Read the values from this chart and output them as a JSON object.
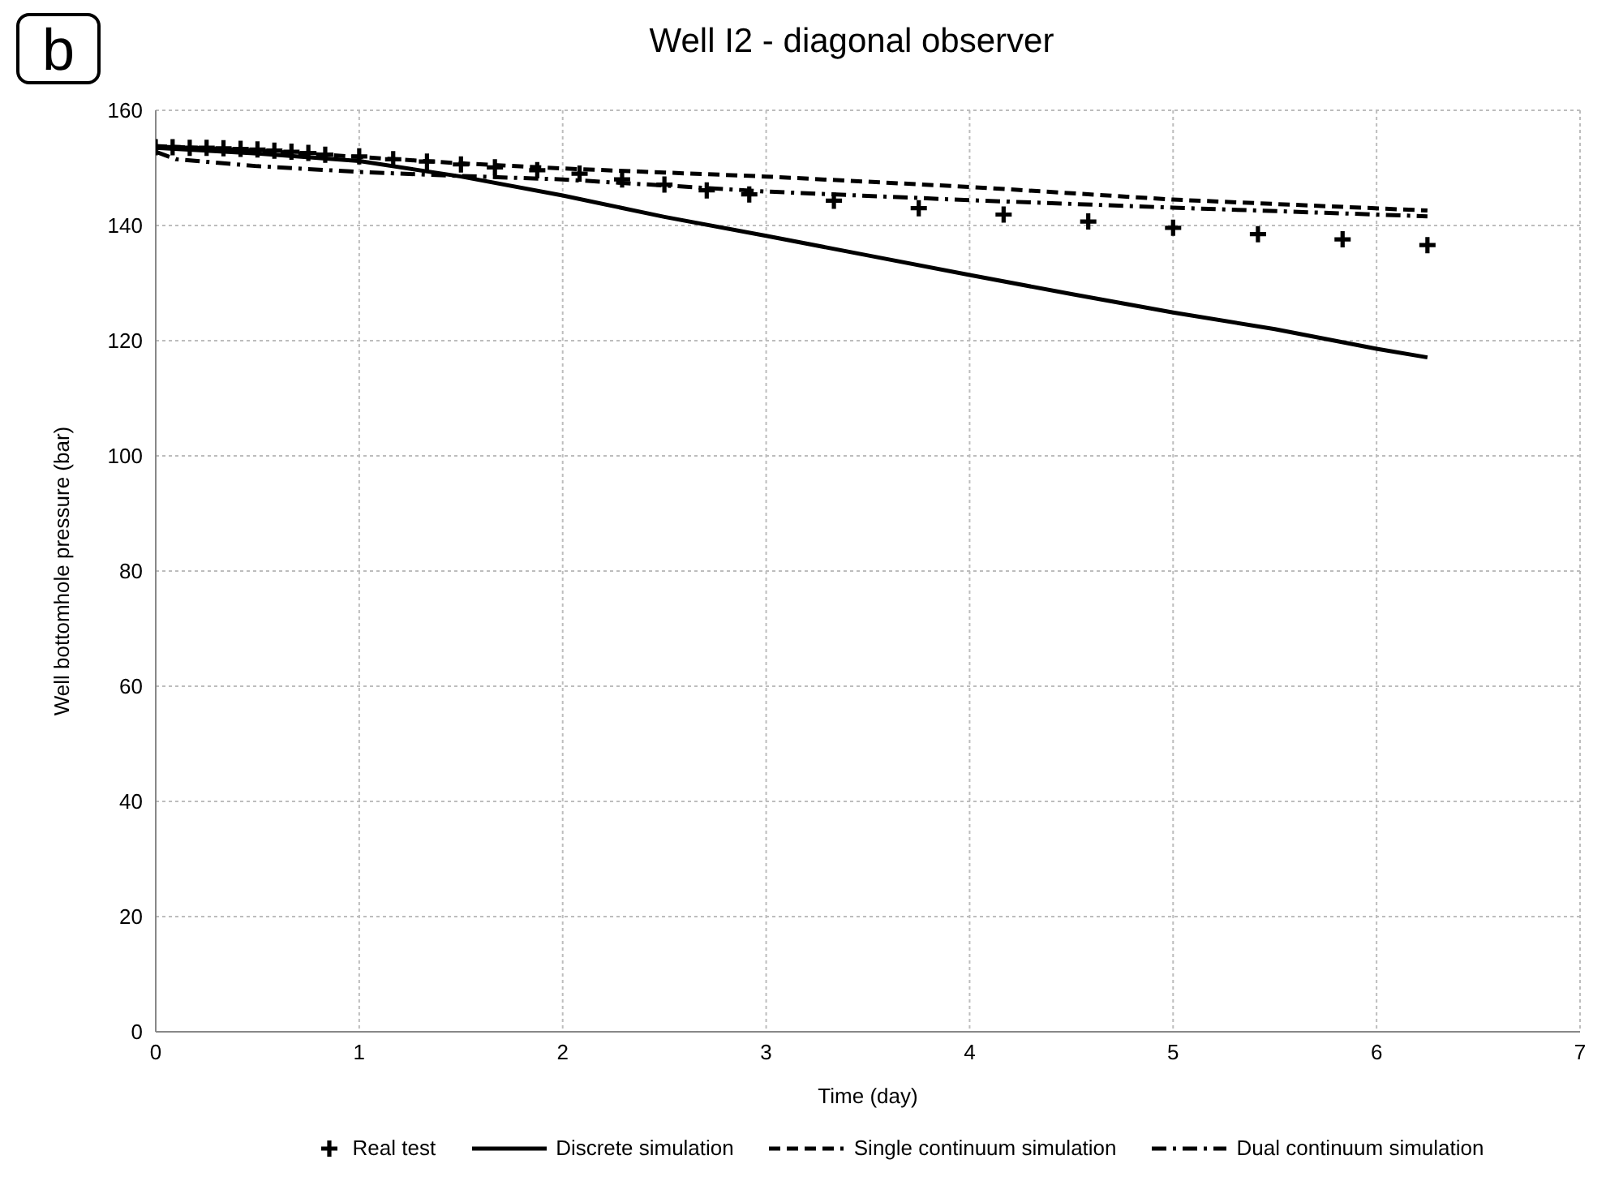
{
  "chart_data": {
    "type": "line",
    "title": "Well I2 - diagonal observer",
    "annotations": [
      "b"
    ],
    "xlabel": "Time (day)",
    "ylabel": "Well bottomhole pressure (bar)",
    "xlim": [
      0,
      7
    ],
    "xticks": [
      0,
      1,
      2,
      3,
      4,
      5,
      6,
      7
    ],
    "ylim": [
      0,
      160
    ],
    "yticks": [
      0,
      20,
      40,
      60,
      80,
      100,
      120,
      140,
      160
    ],
    "grid": true,
    "legend": "bottom",
    "series": [
      {
        "name": "Real test",
        "type": "scatter",
        "marker": "cross",
        "color": "#000000",
        "x": [
          0,
          0.083,
          0.167,
          0.25,
          0.333,
          0.417,
          0.5,
          0.583,
          0.667,
          0.75,
          0.833,
          1,
          1.167,
          1.333,
          1.5,
          1.667,
          1.875,
          2.083,
          2.292,
          2.5,
          2.708,
          2.917,
          3.333,
          3.75,
          4.167,
          4.583,
          5,
          5.417,
          5.833,
          6.25
        ],
        "values": [
          153.6,
          153.6,
          153.5,
          153.5,
          153.4,
          153.3,
          153.2,
          153,
          152.8,
          152.6,
          152.3,
          152,
          151.5,
          151.1,
          150.6,
          150.1,
          149.6,
          149,
          148,
          147.1,
          146.1,
          145.4,
          144.3,
          143,
          141.9,
          140.7,
          139.6,
          138.5,
          137.6,
          136.6
        ]
      },
      {
        "name": "Discrete simulation",
        "line_style": "solid",
        "color": "#000000",
        "x": [
          0,
          0.5,
          1,
          1.5,
          2,
          2.5,
          3,
          3.5,
          4,
          4.5,
          5,
          5.5,
          6,
          6.25
        ],
        "values": [
          153.5,
          152.5,
          151.2,
          148.5,
          145.2,
          141.5,
          138.2,
          134.8,
          131.4,
          128.1,
          124.9,
          122,
          118.6,
          117.1
        ]
      },
      {
        "name": "Single continuum simulation",
        "line_style": "dashed",
        "color": "#000000",
        "x": [
          0,
          0.5,
          1,
          1.5,
          2,
          2.5,
          3,
          4,
          5,
          6.25
        ],
        "values": [
          153.8,
          153,
          151.9,
          150.8,
          149.9,
          149.2,
          148.5,
          146.7,
          144.5,
          142.6
        ]
      },
      {
        "name": "Dual continuum simulation",
        "line_style": "dashdot",
        "color": "#000000",
        "x": [
          0,
          0.1,
          0.5,
          1,
          1.5,
          2,
          3,
          4,
          5,
          6.25
        ],
        "values": [
          152.8,
          151.5,
          150.3,
          149.3,
          148.6,
          148,
          145.9,
          144.4,
          143.1,
          141.6
        ]
      }
    ]
  }
}
